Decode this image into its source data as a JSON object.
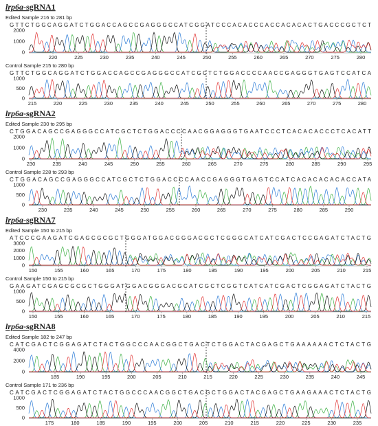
{
  "panels": [
    {
      "title": {
        "gene": "lrp6a",
        "suffix": "-sgRNA1"
      },
      "tracks": [
        {
          "label": "Edited Sample 216 to 281 bp",
          "sequence": "GTTCTGGCAGGATCTGGACCAGCCGAGGGCCATCGGATCCCACACCCACCACACACTGACCCGCTCT",
          "yticks": [
            0,
            1000,
            2000
          ],
          "xticks": [
            220,
            225,
            230,
            235,
            240,
            245,
            250,
            255,
            260,
            265,
            270,
            275,
            280
          ]
        },
        {
          "label": "Control Sample 215 to 280 bp",
          "sequence": "GTTCTGGCAGGATCTGGACCAGCCGAGGGCCATCGCTCTGGACCCCAACCGAGGGTGAGTCCATCA",
          "yticks": [
            0,
            500,
            1000
          ],
          "xticks": [
            215,
            220,
            225,
            230,
            235,
            240,
            245,
            250,
            255,
            260,
            265,
            270,
            275,
            280
          ]
        }
      ]
    },
    {
      "title": {
        "gene": "lrp6a",
        "suffix": "-sgRNA2"
      },
      "tracks": [
        {
          "label": "Edited Sample 230 to 295 bp",
          "sequence": "CTGGACAGCCGAGGGCCATCGCTCTGGACCCCAACGGAGGGTGAATCCCTCACACACCCTCACATT",
          "yticks": [
            0,
            1000,
            2000
          ],
          "xticks": [
            230,
            235,
            240,
            245,
            250,
            255,
            260,
            265,
            270,
            275,
            280,
            285,
            290,
            295
          ]
        },
        {
          "label": "Control Sample 228 to 293 bp",
          "sequence": "CTGGACAGCCGAGGGCCATCGCTCTGGACCCCAACCGAGGGTGAGTCCATCACACACACACCATA",
          "yticks": [
            0,
            500,
            1000
          ],
          "xticks": [
            230,
            235,
            240,
            245,
            250,
            255,
            260,
            265,
            270,
            275,
            280,
            285,
            290
          ]
        }
      ]
    },
    {
      "title": {
        "gene": "lrp6a",
        "suffix": "-sgRNA7"
      },
      "tracks": [
        {
          "label": "Edited Sample 150 to 215 bp",
          "sequence": "ATCCCGAAGATCGAGCGCGCTGGGATGGACGGGACGCTCGGGCATCATCGACTCCGAGATCTACTG",
          "yticks": [
            0,
            1000,
            2000,
            3000
          ],
          "xticks": [
            150,
            155,
            160,
            165,
            170,
            175,
            180,
            185,
            190,
            195,
            200,
            205,
            210,
            215
          ]
        },
        {
          "label": "Control Sample 150 to 215 bp",
          "sequence": "GAAGATCGAGCGCGCTGGGATGGACGGGACGCATCGCTCGGTCATCATCGACTCGGAGATCTACTG",
          "yticks": [
            0,
            500,
            1000
          ],
          "xticks": [
            150,
            155,
            160,
            165,
            170,
            175,
            180,
            185,
            190,
            195,
            200,
            205,
            210,
            215
          ]
        }
      ]
    },
    {
      "title": {
        "gene": "lrp6a",
        "suffix": "-sgRNA8"
      },
      "tracks": [
        {
          "label": "Edited Sample 182 to 247 bp",
          "sequence": "CATCGACTCGGAGATCTACTGGCCCAACGGCTGACTCTGGACTACGAGCTGAAAAAACTCTACTG",
          "yticks": [
            0,
            2000,
            4000
          ],
          "xticks": [
            185,
            190,
            195,
            200,
            205,
            210,
            215,
            220,
            225,
            230,
            235,
            240,
            245
          ]
        },
        {
          "label": "Control Sample 171 to 236 bp",
          "sequence": "CATCGACTCGGAGATCTACTGGCCCAACGGCTGACGCTGGACTACGAGCTGAAGAAACTCTACTG",
          "yticks": [
            0,
            500,
            1000
          ],
          "xticks": [
            175,
            180,
            185,
            190,
            195,
            200,
            205,
            210,
            215,
            220,
            225,
            230,
            235
          ]
        }
      ]
    }
  ]
}
